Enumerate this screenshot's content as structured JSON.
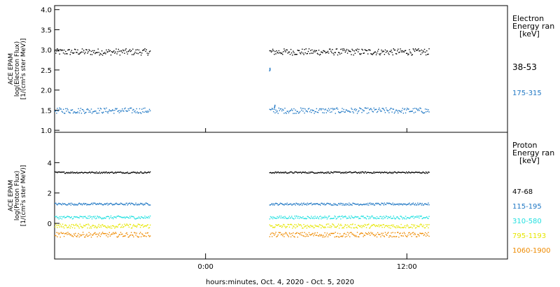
{
  "chart_data": [
    {
      "type": "scatter",
      "panel": "electron",
      "ylabel_lines": [
        "ACE EPAM",
        "log(Electron Flux)",
        "[1/(cm²s ster MeV)]"
      ],
      "ylim": [
        0.95,
        4.1
      ],
      "yticks": [
        1.0,
        1.5,
        2.0,
        2.5,
        3.0,
        3.5,
        4.0
      ],
      "ytick_labels": [
        "1.0",
        "1.5",
        "2.0",
        "2.5",
        "3.0",
        "3.5",
        "4.0"
      ],
      "legend_title": [
        "Electron",
        "Energy ran",
        "[keV]"
      ],
      "series": [
        {
          "name": "38-53",
          "color": "#000000",
          "level": 2.96,
          "jitter": 0.08,
          "segments": [
            [
              -9.0,
              -3.3
            ],
            [
              3.8,
              13.3
            ]
          ]
        },
        {
          "name": "175-315",
          "color": "#1f77c4",
          "level": 1.5,
          "jitter": 0.07,
          "segments": [
            [
              -9.0,
              -3.3
            ],
            [
              3.8,
              13.3
            ]
          ]
        }
      ],
      "annotations": [
        {
          "x": 3.8,
          "y": 2.52,
          "color": "#1f77c4"
        },
        {
          "x": 4.1,
          "y": 1.6,
          "color": "#1f77c4"
        }
      ]
    },
    {
      "type": "scatter",
      "panel": "proton",
      "ylabel_lines": [
        "ACE EPAM",
        "log(Proton Flux)",
        "[1/(cm²s ster MeV)]"
      ],
      "ylim": [
        -2.35,
        6.0
      ],
      "yticks": [
        0,
        2,
        4
      ],
      "ytick_labels": [
        "0",
        "2",
        "4"
      ],
      "legend_title": [
        "Proton",
        "Energy ran",
        "[keV]"
      ],
      "series": [
        {
          "name": "47-68",
          "color": "#000000",
          "level": 3.38,
          "jitter": 0.05,
          "segments": [
            [
              -9.0,
              -3.3
            ],
            [
              3.8,
              13.3
            ]
          ]
        },
        {
          "name": "115-195",
          "color": "#1f77c4",
          "level": 1.3,
          "jitter": 0.07,
          "segments": [
            [
              -9.0,
              -3.3
            ],
            [
              3.8,
              13.3
            ]
          ]
        },
        {
          "name": "310-580",
          "color": "#22e0e0",
          "level": 0.42,
          "jitter": 0.1,
          "segments": [
            [
              -9.0,
              -3.3
            ],
            [
              3.8,
              13.3
            ]
          ]
        },
        {
          "name": "795-1193",
          "color": "#e6e600",
          "level": -0.15,
          "jitter": 0.14,
          "segments": [
            [
              -9.0,
              -3.3
            ],
            [
              3.8,
              13.3
            ]
          ]
        },
        {
          "name": "1060-1900",
          "color": "#ee8a00",
          "level": -0.72,
          "jitter": 0.16,
          "segments": [
            [
              -9.0,
              -3.3
            ],
            [
              3.8,
              13.3
            ]
          ]
        }
      ]
    }
  ],
  "x_axis": {
    "xlim": [
      -9.0,
      18.0
    ],
    "ticks": [
      0,
      12
    ],
    "tick_labels": [
      "0:00",
      "12:00"
    ],
    "label": "hours:minutes, Oct.  4, 2020 - Oct.  5, 2020"
  }
}
